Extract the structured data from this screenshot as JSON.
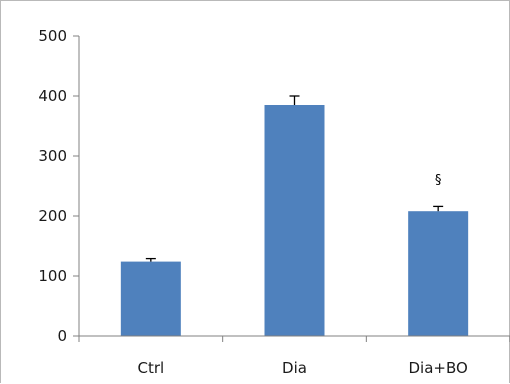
{
  "chart_data": {
    "type": "bar",
    "title": "",
    "xlabel": "",
    "ylabel": "",
    "categories": [
      "Ctrl",
      "Dia",
      "Dia+BO"
    ],
    "values": [
      124,
      385,
      208
    ],
    "error": [
      5,
      15,
      8
    ],
    "ylim": [
      0,
      500
    ],
    "yticks": [
      "0",
      "100",
      "200",
      "300",
      "400",
      "500"
    ],
    "ytick_values": [
      0,
      100,
      200,
      300,
      400,
      500
    ],
    "grid": false,
    "legend": "none",
    "bar_color": "#4f81bd",
    "annotations": [
      {
        "category": "Dia+BO",
        "text": "§",
        "value": 262
      }
    ]
  }
}
